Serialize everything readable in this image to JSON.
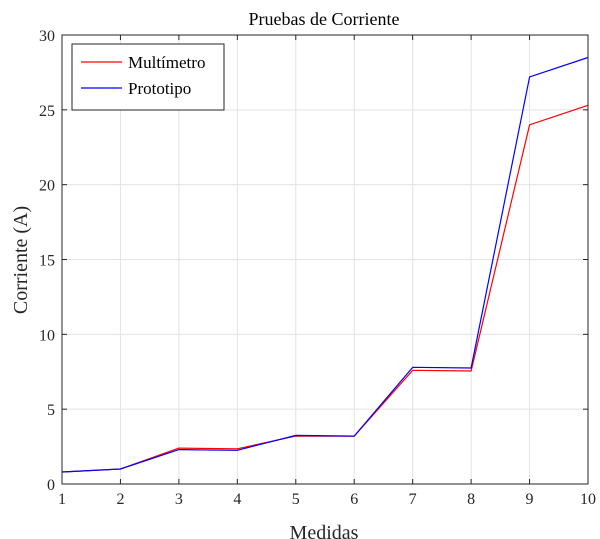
{
  "chart_data": {
    "type": "line",
    "title": "Pruebas de Corriente",
    "xlabel": "Medidas",
    "ylabel": "Corriente (A)",
    "x": [
      1,
      2,
      3,
      4,
      5,
      6,
      7,
      8,
      9,
      10
    ],
    "xlim": [
      1,
      10
    ],
    "ylim": [
      0,
      30
    ],
    "xticks": [
      1,
      2,
      3,
      4,
      5,
      6,
      7,
      8,
      9,
      10
    ],
    "yticks": [
      0,
      5,
      10,
      15,
      20,
      25,
      30
    ],
    "grid": true,
    "legend_position": "top-left",
    "series": [
      {
        "name": "Multímetro",
        "color": "#ff0000",
        "values": [
          0.8,
          1.0,
          2.4,
          2.35,
          3.2,
          3.2,
          7.6,
          7.55,
          24.0,
          25.3
        ]
      },
      {
        "name": "Prototipo",
        "color": "#0000ff",
        "values": [
          0.8,
          1.0,
          2.3,
          2.25,
          3.25,
          3.2,
          7.8,
          7.75,
          27.2,
          28.5
        ]
      }
    ]
  }
}
